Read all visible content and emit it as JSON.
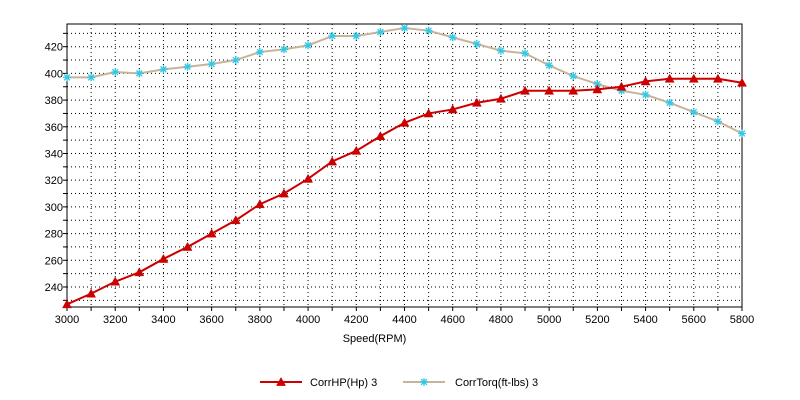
{
  "chart_data": {
    "type": "line",
    "title": "",
    "xlabel": "Speed(RPM)",
    "ylabel": "",
    "xlim": [
      3000,
      5800
    ],
    "ylim": [
      225,
      437
    ],
    "x_ticks": [
      3000,
      3200,
      3400,
      3600,
      3800,
      4000,
      4200,
      4400,
      4600,
      4800,
      5000,
      5200,
      5400,
      5600,
      5800
    ],
    "y_ticks": [
      240,
      260,
      280,
      300,
      320,
      340,
      360,
      380,
      400,
      420
    ],
    "x": [
      3000,
      3100,
      3200,
      3300,
      3400,
      3500,
      3600,
      3700,
      3800,
      3900,
      4000,
      4100,
      4200,
      4300,
      4400,
      4500,
      4600,
      4700,
      4800,
      4900,
      5000,
      5100,
      5200,
      5300,
      5400,
      5500,
      5600,
      5700,
      5800
    ],
    "grid": true,
    "legend_position": "bottom",
    "series": [
      {
        "name": "CorrHP(Hp)  3",
        "color": "#cc0000",
        "marker": "triangle",
        "values": [
          227,
          235,
          244,
          251,
          261,
          270,
          280,
          290,
          302,
          310,
          321,
          334,
          342,
          353,
          363,
          370,
          373,
          378,
          381,
          387,
          387,
          387,
          388,
          390,
          394,
          396,
          396,
          396,
          393
        ]
      },
      {
        "name": "CorrTorq(ft-lbs)  3",
        "color": "#c8b49a",
        "marker_color": "#33c8e6",
        "marker": "star",
        "values": [
          397,
          397,
          401,
          400,
          403,
          405,
          407,
          410,
          416,
          418,
          421,
          428,
          428,
          431,
          434,
          432,
          427,
          422,
          417,
          415,
          406,
          398,
          392,
          387,
          384,
          378,
          371,
          364,
          355
        ]
      }
    ]
  }
}
